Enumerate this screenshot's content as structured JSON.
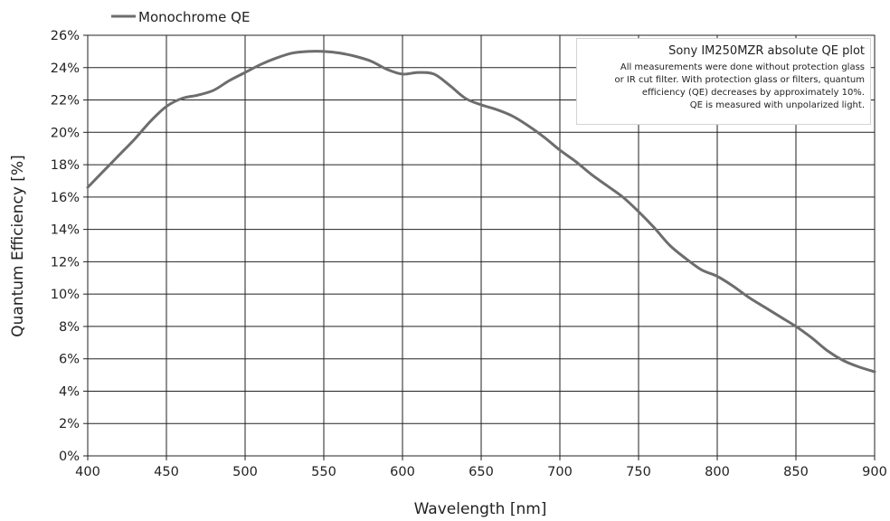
{
  "chart_data": {
    "type": "line",
    "title": "",
    "xlabel": "Wavelength [nm]",
    "ylabel": "Quantum Efficiency [%]",
    "xlim": [
      400,
      900
    ],
    "ylim": [
      0,
      26
    ],
    "x_ticks": [
      "400",
      "450",
      "500",
      "550",
      "600",
      "650",
      "700",
      "750",
      "800",
      "850",
      "900"
    ],
    "y_ticks": [
      "0%",
      "2%",
      "4%",
      "6%",
      "8%",
      "10%",
      "12%",
      "14%",
      "16%",
      "18%",
      "20%",
      "22%",
      "24%",
      "26%"
    ],
    "grid": true,
    "legend_position": "top-left",
    "series": [
      {
        "name": "Monochrome QE",
        "color": "#6d6d6d",
        "x": [
          400,
          410,
          420,
          430,
          440,
          450,
          460,
          470,
          480,
          490,
          500,
          510,
          520,
          530,
          540,
          550,
          560,
          570,
          580,
          590,
          600,
          610,
          620,
          630,
          640,
          650,
          660,
          670,
          680,
          690,
          700,
          710,
          720,
          730,
          740,
          750,
          760,
          770,
          780,
          790,
          800,
          810,
          820,
          830,
          840,
          850,
          860,
          870,
          880,
          890,
          900
        ],
        "values": [
          16.6,
          17.6,
          18.6,
          19.6,
          20.7,
          21.6,
          22.1,
          22.3,
          22.6,
          23.2,
          23.7,
          24.2,
          24.6,
          24.9,
          25.0,
          25.0,
          24.9,
          24.7,
          24.4,
          23.9,
          23.6,
          23.7,
          23.6,
          22.9,
          22.1,
          21.7,
          21.4,
          21.0,
          20.4,
          19.7,
          18.9,
          18.2,
          17.4,
          16.7,
          16.0,
          15.1,
          14.1,
          13.0,
          12.2,
          11.5,
          11.1,
          10.5,
          9.8,
          9.2,
          8.6,
          8.0,
          7.3,
          6.5,
          5.9,
          5.5,
          5.2
        ]
      }
    ],
    "annotation": {
      "title": "Sony IM250MZR absolute QE plot",
      "lines": [
        "All measurements were done without protection glass",
        "or IR cut filter. With protection glass or filters, quantum",
        "efficiency (QE) decreases by approximately 10%.",
        "QE is measured with unpolarized light."
      ]
    }
  }
}
